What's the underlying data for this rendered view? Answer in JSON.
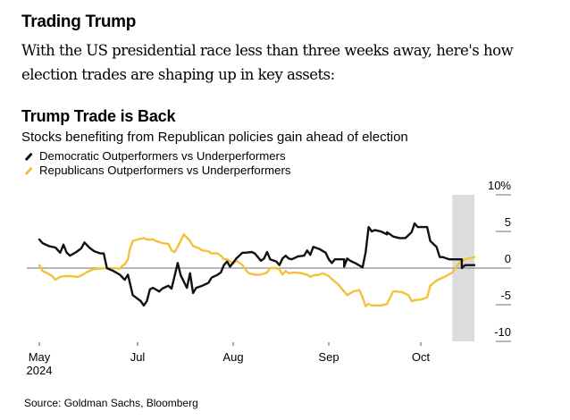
{
  "header": {
    "headline": "Trading Trump",
    "dek": "With the US presidential race less than three weeks away, here's how election trades are shaping up in key assets:"
  },
  "colors": {
    "democratic": "#111111",
    "republican": "#F3C13A",
    "zero_line": "#8c8c8c",
    "highlight_band": "#dcdcdc",
    "tick": "#8c8c8c"
  },
  "footer": {
    "source": "Source: Goldman Sachs, Bloomberg"
  },
  "chart_data": {
    "type": "line",
    "title": "Trump Trade is Back",
    "subtitle": "Stocks benefiting from Republican policies gain ahead of election",
    "xlabel": "",
    "ylabel": "",
    "y_unit": "%",
    "ylim": [
      -10,
      10
    ],
    "yticks": [
      10,
      5,
      0,
      -5,
      -10
    ],
    "ytick_labels": [
      "10%",
      "5",
      "0",
      "-5",
      "-10"
    ],
    "y_axis_side": "right",
    "xlim": [
      "2024-05-01",
      "2024-10-18"
    ],
    "xticks": [
      {
        "date": "2024-05-01",
        "label": "May",
        "sublabel": "2024"
      },
      {
        "date": "2024-07-01",
        "label": "Jul",
        "sublabel": ""
      },
      {
        "date": "2024-08-01",
        "label": "Aug",
        "sublabel": ""
      },
      {
        "date": "2024-09-01",
        "label": "Sep",
        "sublabel": ""
      },
      {
        "date": "2024-10-01",
        "label": "Oct",
        "sublabel": ""
      }
    ],
    "zero_line": true,
    "grid": false,
    "legend_position": "top-left",
    "highlight": {
      "start": "2024-10-11",
      "end": "2024-10-18"
    },
    "series": [
      {
        "name": "Democratic Outperformers vs Underperformers",
        "color_key": "democratic",
        "points": [
          [
            "2024-05-01",
            3.9
          ],
          [
            "2024-05-03",
            3.4
          ],
          [
            "2024-05-07",
            3.0
          ],
          [
            "2024-05-11",
            2.8
          ],
          [
            "2024-05-14",
            2.1
          ],
          [
            "2024-05-16",
            3.2
          ],
          [
            "2024-05-18",
            2.1
          ],
          [
            "2024-05-20",
            1.7
          ],
          [
            "2024-05-24",
            2.2
          ],
          [
            "2024-05-27",
            2.7
          ],
          [
            "2024-05-29",
            3.5
          ],
          [
            "2024-06-01",
            2.8
          ],
          [
            "2024-06-04",
            2.3
          ],
          [
            "2024-06-08",
            2.0
          ],
          [
            "2024-06-10",
            2.0
          ],
          [
            "2024-06-12",
            0.0
          ],
          [
            "2024-06-16",
            -0.4
          ],
          [
            "2024-06-20",
            -0.9
          ],
          [
            "2024-06-23",
            -1.6
          ],
          [
            "2024-06-25",
            -0.9
          ],
          [
            "2024-06-28",
            -3.7
          ],
          [
            "2024-07-02",
            -4.5
          ],
          [
            "2024-07-03",
            -5.1
          ],
          [
            "2024-07-04",
            -4.5
          ],
          [
            "2024-07-05",
            -2.9
          ],
          [
            "2024-07-06",
            -2.7
          ],
          [
            "2024-07-08",
            -3.2
          ],
          [
            "2024-07-09",
            -2.8
          ],
          [
            "2024-07-11",
            -2.4
          ],
          [
            "2024-07-12",
            -2.8
          ],
          [
            "2024-07-13",
            -1.1
          ],
          [
            "2024-07-14",
            0.7
          ],
          [
            "2024-07-15",
            -1.0
          ],
          [
            "2024-07-17",
            -2.7
          ],
          [
            "2024-07-18",
            -0.7
          ],
          [
            "2024-07-19",
            -3.4
          ],
          [
            "2024-07-20",
            -2.7
          ],
          [
            "2024-07-22",
            -2.4
          ],
          [
            "2024-07-24",
            -2.0
          ],
          [
            "2024-07-25",
            -1.3
          ],
          [
            "2024-07-27",
            -0.9
          ],
          [
            "2024-07-28",
            -0.6
          ],
          [
            "2024-07-29",
            0.4
          ],
          [
            "2024-07-30",
            0.9
          ],
          [
            "2024-07-31",
            0.2
          ],
          [
            "2024-08-02",
            1.3
          ],
          [
            "2024-08-04",
            2.1
          ],
          [
            "2024-08-05",
            2.1
          ],
          [
            "2024-08-07",
            2.2
          ],
          [
            "2024-08-08",
            2.0
          ],
          [
            "2024-08-10",
            1.0
          ],
          [
            "2024-08-11",
            1.3
          ],
          [
            "2024-08-12",
            2.2
          ],
          [
            "2024-08-13",
            1.2
          ],
          [
            "2024-08-15",
            0.9
          ],
          [
            "2024-08-16",
            0.4
          ],
          [
            "2024-08-17",
            1.3
          ],
          [
            "2024-08-18",
            1.7
          ],
          [
            "2024-08-19",
            1.3
          ],
          [
            "2024-08-20",
            1.2
          ],
          [
            "2024-08-22",
            1.6
          ],
          [
            "2024-08-24",
            1.7
          ],
          [
            "2024-08-25",
            2.4
          ],
          [
            "2024-08-26",
            1.8
          ],
          [
            "2024-08-27",
            2.9
          ],
          [
            "2024-08-29",
            2.6
          ],
          [
            "2024-08-31",
            2.1
          ],
          [
            "2024-09-01",
            1.2
          ],
          [
            "2024-09-02",
            0.7
          ],
          [
            "2024-09-03",
            1.2
          ],
          [
            "2024-09-05",
            1.2
          ],
          [
            "2024-09-06",
            1.2
          ],
          [
            "2024-09-06",
            0.2
          ],
          [
            "2024-09-07",
            1.3
          ],
          [
            "2024-09-08",
            1.0
          ],
          [
            "2024-09-10",
            0.6
          ],
          [
            "2024-09-12",
            0.1
          ],
          [
            "2024-09-13",
            2.1
          ],
          [
            "2024-09-14",
            5.6
          ],
          [
            "2024-09-15",
            5.0
          ],
          [
            "2024-09-16",
            5.2
          ],
          [
            "2024-09-18",
            5.0
          ],
          [
            "2024-09-20",
            4.6
          ],
          [
            "2024-09-20",
            4.9
          ],
          [
            "2024-09-22",
            4.3
          ],
          [
            "2024-09-24",
            4.1
          ],
          [
            "2024-09-26",
            4.1
          ],
          [
            "2024-09-27",
            4.5
          ],
          [
            "2024-09-28",
            4.9
          ],
          [
            "2024-09-29",
            6.1
          ],
          [
            "2024-09-30",
            5.6
          ],
          [
            "2024-10-03",
            5.6
          ],
          [
            "2024-10-04",
            3.7
          ],
          [
            "2024-10-06",
            2.9
          ],
          [
            "2024-10-07",
            1.5
          ],
          [
            "2024-10-08",
            1.5
          ],
          [
            "2024-10-10",
            1.2
          ],
          [
            "2024-10-14",
            1.2
          ],
          [
            "2024-10-14",
            0.0
          ],
          [
            "2024-10-15",
            0.4
          ],
          [
            "2024-10-18",
            0.4
          ]
        ]
      },
      {
        "name": "Republicans Outperformers vs Underperformers",
        "color_key": "republican",
        "points": [
          [
            "2024-05-01",
            0.4
          ],
          [
            "2024-05-03",
            -0.4
          ],
          [
            "2024-05-06",
            -0.7
          ],
          [
            "2024-05-09",
            -1.1
          ],
          [
            "2024-05-11",
            -1.6
          ],
          [
            "2024-05-14",
            -1.2
          ],
          [
            "2024-05-17",
            -1.1
          ],
          [
            "2024-05-20",
            -1.1
          ],
          [
            "2024-05-25",
            -1.2
          ],
          [
            "2024-05-28",
            -0.9
          ],
          [
            "2024-05-31",
            -0.5
          ],
          [
            "2024-06-03",
            -0.2
          ],
          [
            "2024-06-06",
            -0.1
          ],
          [
            "2024-06-11",
            0.0
          ],
          [
            "2024-06-14",
            -0.2
          ],
          [
            "2024-06-17",
            0.0
          ],
          [
            "2024-06-20",
            -0.1
          ],
          [
            "2024-06-22",
            0.4
          ],
          [
            "2024-06-23",
            0.5
          ],
          [
            "2024-06-25",
            1.2
          ],
          [
            "2024-06-26",
            2.4
          ],
          [
            "2024-06-28",
            3.7
          ],
          [
            "2024-07-01",
            3.9
          ],
          [
            "2024-07-03",
            4.1
          ],
          [
            "2024-07-04",
            3.9
          ],
          [
            "2024-07-06",
            3.9
          ],
          [
            "2024-07-07",
            3.7
          ],
          [
            "2024-07-09",
            3.4
          ],
          [
            "2024-07-11",
            3.3
          ],
          [
            "2024-07-12",
            2.4
          ],
          [
            "2024-07-13",
            2.2
          ],
          [
            "2024-07-14",
            2.9
          ],
          [
            "2024-07-16",
            4.6
          ],
          [
            "2024-07-18",
            3.7
          ],
          [
            "2024-07-19",
            3.0
          ],
          [
            "2024-07-21",
            2.7
          ],
          [
            "2024-07-22",
            2.4
          ],
          [
            "2024-07-24",
            2.3
          ],
          [
            "2024-07-25",
            2.0
          ],
          [
            "2024-07-27",
            2.0
          ],
          [
            "2024-07-28",
            1.7
          ],
          [
            "2024-07-29",
            1.2
          ],
          [
            "2024-07-30",
            1.2
          ],
          [
            "2024-07-31",
            0.9
          ],
          [
            "2024-08-01",
            0.6
          ],
          [
            "2024-08-02",
            1.0
          ],
          [
            "2024-08-04",
            0.4
          ],
          [
            "2024-08-05",
            -0.2
          ],
          [
            "2024-08-06",
            -0.7
          ],
          [
            "2024-08-08",
            -0.9
          ],
          [
            "2024-08-10",
            -0.9
          ],
          [
            "2024-08-12",
            -0.6
          ],
          [
            "2024-08-13",
            0.0
          ],
          [
            "2024-08-15",
            0.0
          ],
          [
            "2024-08-16",
            -0.2
          ],
          [
            "2024-08-17",
            -0.9
          ],
          [
            "2024-08-18",
            -0.4
          ],
          [
            "2024-08-19",
            -0.7
          ],
          [
            "2024-08-21",
            -0.6
          ],
          [
            "2024-08-23",
            -0.7
          ],
          [
            "2024-08-25",
            -0.9
          ],
          [
            "2024-08-26",
            -1.2
          ],
          [
            "2024-08-27",
            -1.0
          ],
          [
            "2024-08-29",
            -0.9
          ],
          [
            "2024-08-30",
            -0.7
          ],
          [
            "2024-09-01",
            -1.1
          ],
          [
            "2024-09-02",
            -1.5
          ],
          [
            "2024-09-04",
            -2.2
          ],
          [
            "2024-09-06",
            -3.2
          ],
          [
            "2024-09-07",
            -3.7
          ],
          [
            "2024-09-09",
            -3.2
          ],
          [
            "2024-09-11",
            -3.0
          ],
          [
            "2024-09-12",
            -4.0
          ],
          [
            "2024-09-13",
            -5.2
          ],
          [
            "2024-09-14",
            -4.9
          ],
          [
            "2024-09-15",
            -5.1
          ],
          [
            "2024-09-18",
            -5.1
          ],
          [
            "2024-09-20",
            -4.9
          ],
          [
            "2024-09-22",
            -3.2
          ],
          [
            "2024-09-23",
            -3.2
          ],
          [
            "2024-09-25",
            -3.3
          ],
          [
            "2024-09-27",
            -3.7
          ],
          [
            "2024-09-28",
            -4.5
          ],
          [
            "2024-09-30",
            -4.3
          ],
          [
            "2024-10-01",
            -4.3
          ],
          [
            "2024-10-03",
            -4.0
          ],
          [
            "2024-10-04",
            -2.4
          ],
          [
            "2024-10-06",
            -1.7
          ],
          [
            "2024-10-09",
            -1.1
          ],
          [
            "2024-10-11",
            -0.6
          ],
          [
            "2024-10-13",
            0.6
          ],
          [
            "2024-10-15",
            1.2
          ],
          [
            "2024-10-18",
            1.5
          ]
        ]
      }
    ]
  }
}
